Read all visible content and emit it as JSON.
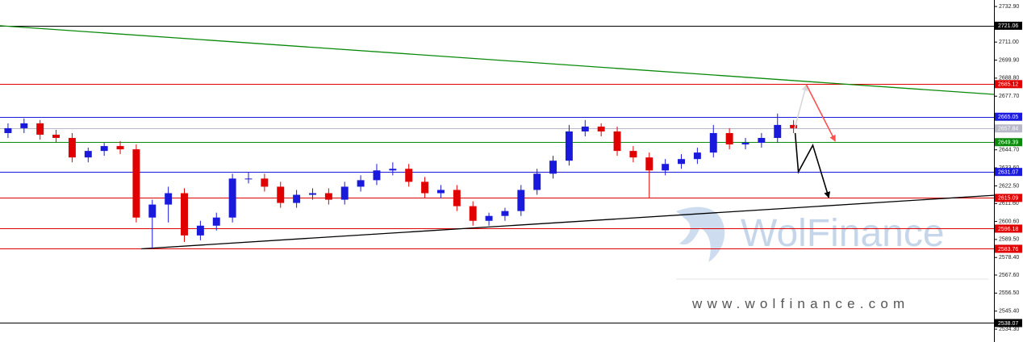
{
  "chart_data": {
    "type": "candlestick",
    "xlim": [
      -0.5,
      61.5
    ],
    "ylim": [
      2526.4,
      2736.9
    ],
    "yticks": [
      {
        "value": 2732.9,
        "label": "2732.90"
      },
      {
        "value": 2711,
        "label": "2711.00"
      },
      {
        "value": 2699.9,
        "label": "2699.90"
      },
      {
        "value": 2688.8,
        "label": "2688.80"
      },
      {
        "value": 2677.7,
        "label": "2677.70"
      },
      {
        "value": 2644.7,
        "label": "2644.70"
      },
      {
        "value": 2633.6,
        "label": "2633.60"
      },
      {
        "value": 2622.5,
        "label": "2622.50"
      },
      {
        "value": 2611.6,
        "label": "2611.60"
      },
      {
        "value": 2600.6,
        "label": "2600.60"
      },
      {
        "value": 2589.5,
        "label": "2589.50"
      },
      {
        "value": 2578.4,
        "label": "2578.40"
      },
      {
        "value": 2567.6,
        "label": "2567.60"
      },
      {
        "value": 2556.5,
        "label": "2556.50"
      },
      {
        "value": 2545.4,
        "label": "2545.40"
      },
      {
        "value": 2534.3,
        "label": "2534.30"
      }
    ],
    "levels": [
      {
        "value": 2721.06,
        "color": "#000000"
      },
      {
        "value": 2685.12,
        "color": "#e00000"
      },
      {
        "value": 2665.05,
        "color": "#1a1adc"
      },
      {
        "value": 2657.84,
        "color": "#b8b8c8"
      },
      {
        "value": 2649.39,
        "color": "#0a8a0a"
      },
      {
        "value": 2631.07,
        "color": "#1a1adc"
      },
      {
        "value": 2615.09,
        "color": "#e00000"
      },
      {
        "value": 2596.18,
        "color": "#e00000"
      },
      {
        "value": 2583.76,
        "color": "#e00000"
      },
      {
        "value": 2538.07,
        "color": "#000000"
      }
    ],
    "up_color": "#1a1adc",
    "down_color": "#e00000",
    "x": [
      0,
      1,
      2,
      3,
      4,
      5,
      6,
      7,
      8,
      9,
      10,
      11,
      12,
      13,
      14,
      15,
      16,
      17,
      18,
      19,
      20,
      21,
      22,
      23,
      24,
      25,
      26,
      27,
      28,
      29,
      30,
      31,
      32,
      33,
      34,
      35,
      36,
      37,
      38,
      39,
      40,
      41,
      42,
      43,
      44,
      45,
      46,
      47,
      48,
      49
    ],
    "open": [
      2655,
      2658,
      2661,
      2654,
      2652,
      2640,
      2644,
      2647,
      2645,
      2603,
      2611,
      2618,
      2592,
      2598,
      2603,
      2627,
      2627,
      2622,
      2612,
      2617,
      2618,
      2614,
      2622,
      2626,
      2632,
      2633,
      2625,
      2618,
      2620,
      2610,
      2601,
      2604,
      2607,
      2620,
      2630,
      2638,
      2656,
      2659,
      2656,
      2644,
      2640,
      2632,
      2636,
      2639,
      2643,
      2655,
      2648,
      2649,
      2652,
      2660
    ],
    "high": [
      2661,
      2664,
      2663,
      2657,
      2655,
      2646,
      2649,
      2650,
      2648,
      2614,
      2622,
      2621,
      2601,
      2606,
      2630,
      2631,
      2630,
      2625,
      2620,
      2621,
      2621,
      2625,
      2629,
      2636,
      2637,
      2636,
      2628,
      2623,
      2623,
      2613,
      2606,
      2609,
      2623,
      2633,
      2641,
      2660,
      2663,
      2661,
      2659,
      2647,
      2643,
      2639,
      2642,
      2646,
      2660,
      2658,
      2652,
      2655,
      2667,
      2663
    ],
    "low": [
      2652,
      2655,
      2651,
      2649,
      2637,
      2637,
      2641,
      2642,
      2600,
      2584,
      2600,
      2588,
      2589,
      2595,
      2600,
      2624,
      2619,
      2609,
      2609,
      2614,
      2611,
      2611,
      2619,
      2623,
      2629,
      2622,
      2615,
      2615,
      2607,
      2598,
      2598,
      2601,
      2604,
      2617,
      2627,
      2635,
      2653,
      2653,
      2641,
      2637,
      2615,
      2629,
      2633,
      2636,
      2640,
      2645,
      2645,
      2646,
      2649,
      2655
    ],
    "close": [
      2658,
      2661,
      2654,
      2652,
      2640,
      2644,
      2647,
      2645,
      2603,
      2611,
      2618,
      2592,
      2598,
      2603,
      2627,
      2627,
      2622,
      2612,
      2617,
      2618,
      2614,
      2622,
      2626,
      2632,
      2633,
      2625,
      2618,
      2620,
      2610,
      2601,
      2604,
      2607,
      2620,
      2630,
      2638,
      2656,
      2659,
      2656,
      2644,
      2640,
      2632,
      2636,
      2639,
      2643,
      2655,
      2648,
      2649,
      2652,
      2660,
      2658
    ],
    "trendlines": [
      {
        "color": "#0a8a0a",
        "x": [
          -0.5,
          61.5
        ],
        "y": [
          2721.06,
          2678.8
        ]
      },
      {
        "color": "#000000",
        "x": [
          8.3,
          61.5
        ],
        "y": [
          2583.76,
          2616.7
        ]
      }
    ],
    "projections": [
      {
        "color": "#d8d8d8",
        "x": [
          49.07,
          49.8
        ],
        "y": [
          2658,
          2684.7
        ]
      },
      {
        "color": "#ff5050",
        "x": [
          49.8,
          51.6
        ],
        "y": [
          2684.7,
          2650
        ]
      },
      {
        "color": "#000000",
        "x": [
          49.1,
          49.3,
          50.2,
          51.2
        ],
        "y": [
          2655,
          2631.1,
          2647.5,
          2615.2
        ]
      }
    ],
    "watermark": {
      "brand": "WolFinance",
      "url": "www.wolfinance.com"
    }
  }
}
